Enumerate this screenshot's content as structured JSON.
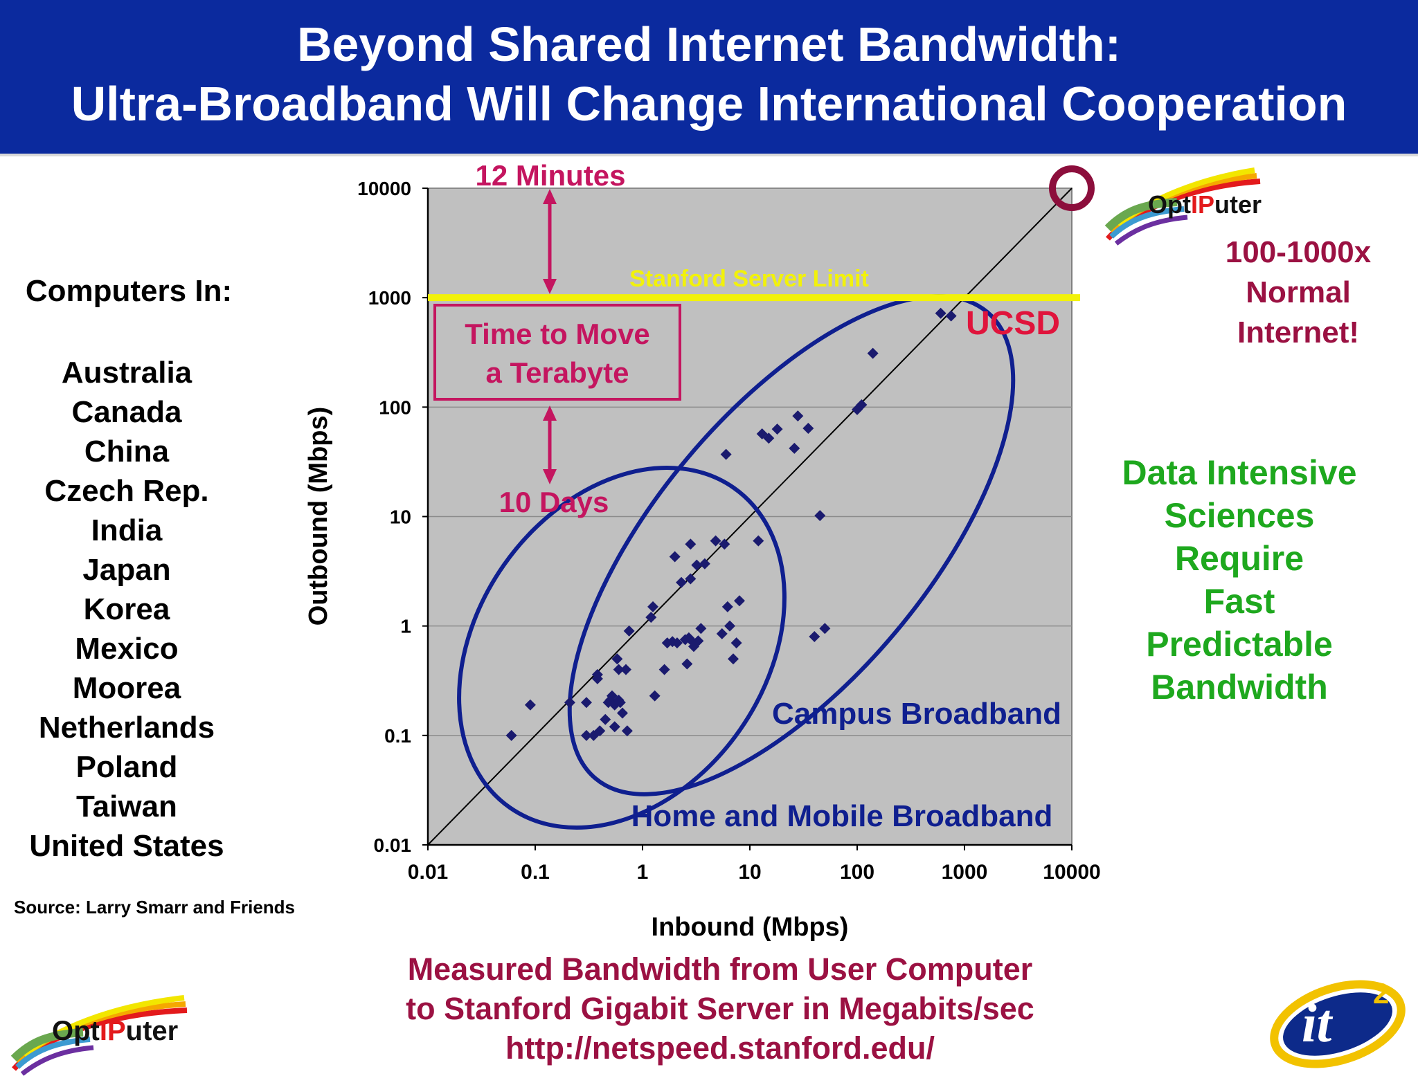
{
  "header": {
    "title_line1": "Beyond Shared Internet Bandwidth:",
    "title_line2": "Ultra-Broadband Will Change International Cooperation"
  },
  "left_panel": {
    "heading": "Computers In:",
    "countries": [
      "Australia",
      "Canada",
      "China",
      "Czech Rep.",
      "India",
      "Japan",
      "Korea",
      "Mexico",
      "Moorea",
      "Netherlands",
      "Poland",
      "Taiwan",
      "United States"
    ],
    "source": "Source: Larry Smarr and Friends"
  },
  "right_panel": {
    "logo_text_a": "Opt",
    "logo_text_b": "IP",
    "logo_text_c": "uter",
    "multiplier_lines": [
      "100-1000x",
      "Normal",
      "Internet!"
    ],
    "message_lines": [
      "Data Intensive",
      "Sciences",
      "Require",
      "Fast",
      "Predictable",
      "Bandwidth"
    ]
  },
  "bottom": {
    "caption_lines": [
      "Measured Bandwidth from User Computer",
      "to Stanford Gigabit Server in Megabits/sec",
      "http://netspeed.stanford.edu/"
    ],
    "it2_logo_text": "it",
    "it2_logo_sup": "2"
  },
  "colors": {
    "banner": "#0b2a9e",
    "plot_bg": "#c0c0c0",
    "points": "#1a1a6e",
    "ellipse": "#0f1f8f",
    "limit_line": "#f2f20a",
    "annotation": "#c4155f",
    "ucsd": "#e0143c",
    "green_text": "#1ea81e",
    "maroon_text": "#9b1142"
  },
  "chart_data": {
    "type": "scatter",
    "xscale": "log",
    "yscale": "log",
    "xlabel": "Inbound (Mbps)",
    "ylabel": "Outbound (Mbps)",
    "xlim": [
      0.01,
      10000
    ],
    "ylim": [
      0.01,
      10000
    ],
    "x_ticks": [
      "0.01",
      "0.1",
      "1",
      "10",
      "100",
      "1000",
      "10000"
    ],
    "y_ticks": [
      "0.01",
      "0.1",
      "1",
      "10",
      "100",
      "1000",
      "10000"
    ],
    "grid": "horizontal",
    "diagonal": "y = x",
    "limit_line": {
      "y": 1000,
      "label": "Stanford Server Limit"
    },
    "annotations": {
      "top_time": "12 Minutes",
      "bottom_time": "10 Days",
      "box_line1": "Time to Move",
      "box_line2": "a Terabyte",
      "ucsd": "UCSD",
      "campus": "Campus Broadband",
      "home": "Home and Mobile Broadband"
    },
    "points": [
      {
        "x": 0.06,
        "y": 0.1
      },
      {
        "x": 0.09,
        "y": 0.19
      },
      {
        "x": 0.21,
        "y": 0.2
      },
      {
        "x": 0.3,
        "y": 0.2
      },
      {
        "x": 0.3,
        "y": 0.1
      },
      {
        "x": 0.35,
        "y": 0.1
      },
      {
        "x": 0.38,
        "y": 0.36
      },
      {
        "x": 0.38,
        "y": 0.33
      },
      {
        "x": 0.4,
        "y": 0.11
      },
      {
        "x": 0.45,
        "y": 0.14
      },
      {
        "x": 0.48,
        "y": 0.2
      },
      {
        "x": 0.5,
        "y": 0.21
      },
      {
        "x": 0.52,
        "y": 0.23
      },
      {
        "x": 0.55,
        "y": 0.19
      },
      {
        "x": 0.55,
        "y": 0.12
      },
      {
        "x": 0.58,
        "y": 0.5
      },
      {
        "x": 0.6,
        "y": 0.21
      },
      {
        "x": 0.6,
        "y": 0.4
      },
      {
        "x": 0.62,
        "y": 0.2
      },
      {
        "x": 0.65,
        "y": 0.16
      },
      {
        "x": 0.7,
        "y": 0.4
      },
      {
        "x": 0.72,
        "y": 0.11
      },
      {
        "x": 0.75,
        "y": 0.9
      },
      {
        "x": 1.2,
        "y": 1.2
      },
      {
        "x": 1.25,
        "y": 1.5
      },
      {
        "x": 1.3,
        "y": 0.23
      },
      {
        "x": 1.6,
        "y": 0.4
      },
      {
        "x": 1.7,
        "y": 0.7
      },
      {
        "x": 1.9,
        "y": 0.72
      },
      {
        "x": 2.0,
        "y": 4.3
      },
      {
        "x": 2.1,
        "y": 0.7
      },
      {
        "x": 2.3,
        "y": 2.5
      },
      {
        "x": 2.5,
        "y": 0.75
      },
      {
        "x": 2.6,
        "y": 0.45
      },
      {
        "x": 2.7,
        "y": 0.78
      },
      {
        "x": 2.8,
        "y": 2.7
      },
      {
        "x": 2.8,
        "y": 5.6
      },
      {
        "x": 3.0,
        "y": 0.7
      },
      {
        "x": 3.0,
        "y": 0.65
      },
      {
        "x": 3.2,
        "y": 3.6
      },
      {
        "x": 3.3,
        "y": 0.73
      },
      {
        "x": 3.5,
        "y": 0.95
      },
      {
        "x": 3.8,
        "y": 3.7
      },
      {
        "x": 4.8,
        "y": 6.0
      },
      {
        "x": 5.5,
        "y": 0.85
      },
      {
        "x": 5.8,
        "y": 5.6
      },
      {
        "x": 6.0,
        "y": 37
      },
      {
        "x": 6.2,
        "y": 1.5
      },
      {
        "x": 6.5,
        "y": 1.0
      },
      {
        "x": 7.0,
        "y": 0.5
      },
      {
        "x": 7.5,
        "y": 0.7
      },
      {
        "x": 8.0,
        "y": 1.7
      },
      {
        "x": 12,
        "y": 6.0
      },
      {
        "x": 13,
        "y": 57
      },
      {
        "x": 15,
        "y": 52
      },
      {
        "x": 18,
        "y": 63
      },
      {
        "x": 26,
        "y": 42
      },
      {
        "x": 28,
        "y": 83
      },
      {
        "x": 35,
        "y": 64
      },
      {
        "x": 40,
        "y": 0.8
      },
      {
        "x": 45,
        "y": 10.2
      },
      {
        "x": 50,
        "y": 0.95
      },
      {
        "x": 100,
        "y": 95
      },
      {
        "x": 110,
        "y": 105
      },
      {
        "x": 140,
        "y": 310
      },
      {
        "x": 600,
        "y": 720
      },
      {
        "x": 750,
        "y": 680
      }
    ],
    "target_marker": {
      "x": 10000,
      "y": 10000
    }
  }
}
